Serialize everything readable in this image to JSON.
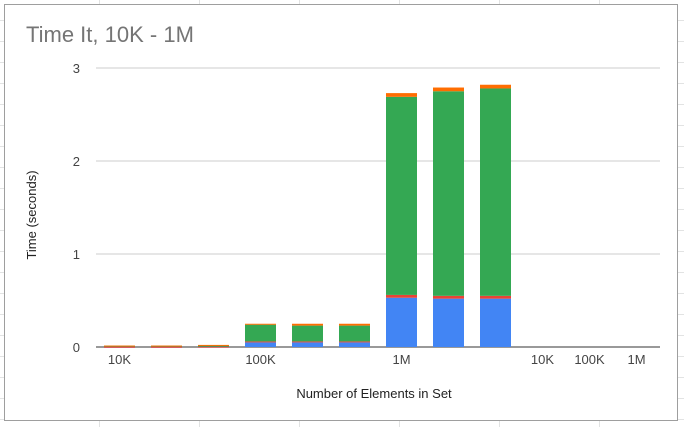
{
  "chart_data": {
    "type": "bar",
    "stacked": true,
    "title": "Time It, 10K - 1M",
    "xlabel": "Number of Elements in Set",
    "ylabel": "Time (seconds)",
    "ylim": [
      0,
      3
    ],
    "yticks": [
      "0",
      "1",
      "2",
      "3"
    ],
    "categories": [
      "10K",
      "",
      "",
      "100K",
      "",
      "",
      "1M",
      "",
      "",
      "10K",
      "100K",
      "1M"
    ],
    "grid": true,
    "legend": "none",
    "series": [
      {
        "color": "#4285f4",
        "values": [
          0.002,
          0.002,
          0.003,
          0.05,
          0.05,
          0.05,
          0.53,
          0.52,
          0.52,
          0,
          0,
          0
        ]
      },
      {
        "color": "#ea4335",
        "values": [
          0.0005,
          0.0005,
          0.0005,
          0.01,
          0.01,
          0.01,
          0.03,
          0.03,
          0.03,
          0,
          0,
          0
        ]
      },
      {
        "color": "#34a853",
        "values": [
          0.012,
          0.012,
          0.018,
          0.18,
          0.17,
          0.17,
          2.13,
          2.2,
          2.23,
          0,
          0,
          0
        ]
      },
      {
        "color": "#ff6d01",
        "values": [
          0.001,
          0.001,
          0.001,
          0.01,
          0.02,
          0.02,
          0.04,
          0.04,
          0.04,
          0,
          0,
          0
        ]
      }
    ]
  }
}
